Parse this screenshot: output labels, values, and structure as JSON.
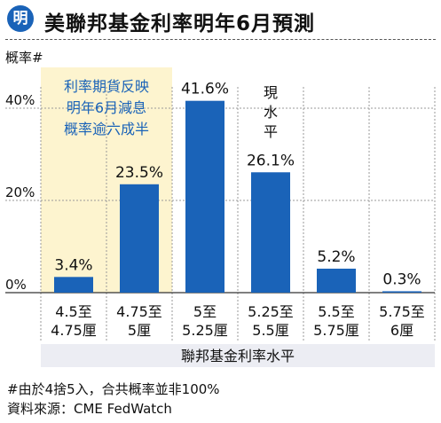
{
  "header": {
    "logo_text": "明",
    "title": "美聯邦基金利率明年6月預測",
    "accent_color": "#1a63b8"
  },
  "chart_data": {
    "type": "bar",
    "ylabel": "概率#",
    "xlabel": "聯邦基金利率水平",
    "ylim": [
      0,
      45
    ],
    "yticks": [
      0,
      20,
      40
    ],
    "ytick_labels": [
      "0%",
      "20%",
      "40%"
    ],
    "grid": true,
    "categories": [
      [
        "4.5至",
        "4.75厘"
      ],
      [
        "4.75至",
        "5厘"
      ],
      [
        "5至",
        "5.25厘"
      ],
      [
        "5.25至",
        "5.5厘"
      ],
      [
        "5.5至",
        "5.75厘"
      ],
      [
        "5.75至",
        "6厘"
      ]
    ],
    "values": [
      3.4,
      23.5,
      41.6,
      26.1,
      5.2,
      0.3
    ],
    "value_labels": [
      "3.4%",
      "23.5%",
      "41.6%",
      "26.1%",
      "5.2%",
      "0.3%"
    ],
    "bar_color": "#1a63b8",
    "highlight": {
      "categories": [
        0,
        1
      ],
      "color": "#fdf4cf",
      "text": [
        "利率期貨反映",
        "明年6月減息",
        "概率逾六成半"
      ],
      "text_color": "#1a63b8"
    },
    "current_level": {
      "category": 3,
      "text": [
        "現",
        "水",
        "平"
      ]
    }
  },
  "footer": {
    "note": "#由於4捨5入，合共概率並非100%",
    "source": "資料來源：CME FedWatch"
  }
}
